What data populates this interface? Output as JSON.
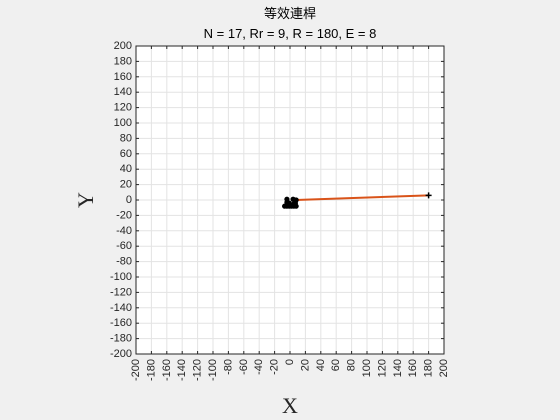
{
  "chart_data": {
    "type": "line",
    "title": "等效連桿",
    "subtitle": "N = 17, Rr = 9, R = 180, E = 8",
    "xlabel": "X",
    "ylabel": "Y",
    "xlim": [
      -200,
      200
    ],
    "ylim": [
      -200,
      200
    ],
    "xticks": [
      -200,
      -180,
      -160,
      -140,
      -120,
      -100,
      -80,
      -60,
      -40,
      -20,
      0,
      20,
      40,
      60,
      80,
      100,
      120,
      140,
      160,
      180,
      200
    ],
    "yticks": [
      -200,
      -180,
      -160,
      -140,
      -120,
      -100,
      -80,
      -60,
      -40,
      -20,
      0,
      20,
      40,
      60,
      80,
      100,
      120,
      140,
      160,
      180,
      200
    ],
    "grid": true,
    "series": [
      {
        "type": "line",
        "color": "#d95319",
        "points": [
          [
            8,
            0
          ],
          [
            180,
            6
          ]
        ]
      },
      {
        "type": "scatter",
        "color": "#000000",
        "marker": "filled-circle",
        "points": [
          [
            -7,
            -8
          ],
          [
            -4,
            -8
          ],
          [
            -1,
            -8
          ],
          [
            2,
            -8
          ],
          [
            5,
            -8
          ],
          [
            8,
            -8
          ],
          [
            -4,
            -3
          ],
          [
            -1,
            -4
          ],
          [
            5,
            -5
          ],
          [
            7,
            -4
          ],
          [
            -4,
            1
          ],
          [
            4,
            1
          ],
          [
            6,
            0
          ],
          [
            8,
            0
          ]
        ]
      },
      {
        "type": "scatter",
        "color": "#000000",
        "marker": "plus",
        "points": [
          [
            180,
            6
          ]
        ]
      }
    ]
  }
}
